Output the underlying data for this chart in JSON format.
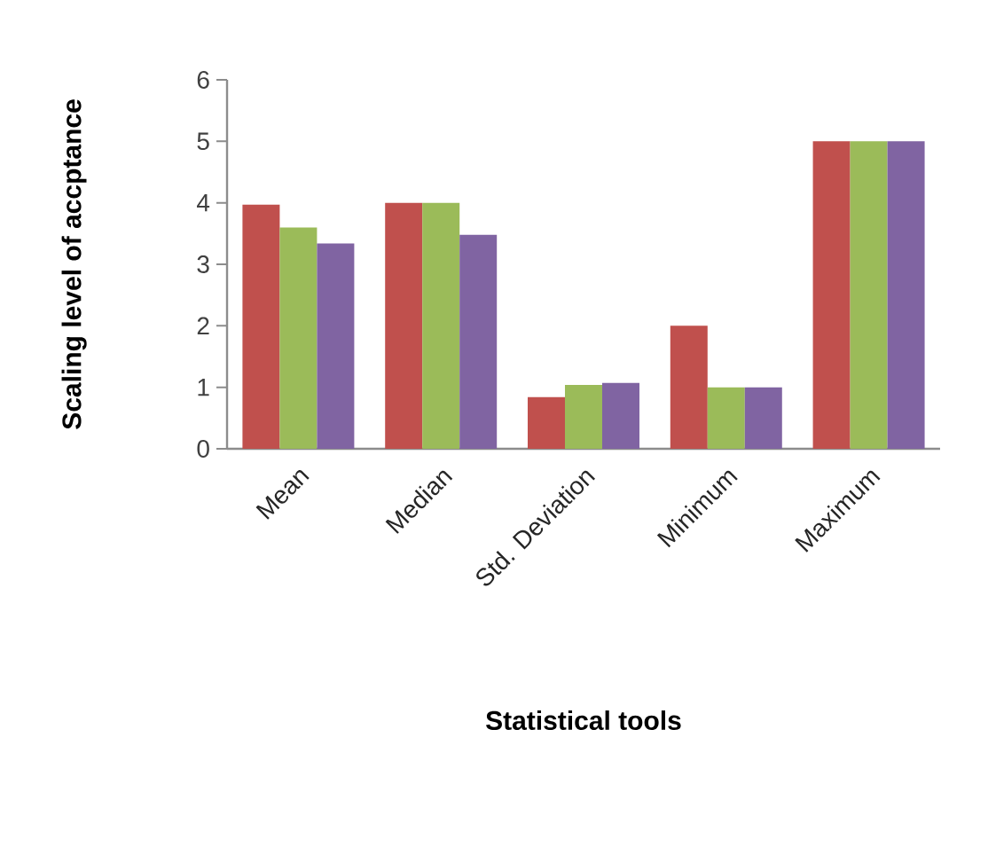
{
  "chart_data": {
    "type": "bar",
    "xlabel": "Statistical tools",
    "ylabel": "Scaling level of accptance",
    "categories": [
      "Mean",
      "Median",
      "Std. Deviation",
      "Minimum",
      "Maximum"
    ],
    "series": [
      {
        "color": "#c0504d",
        "values": [
          3.97,
          4.0,
          0.84,
          2.0,
          5.0
        ]
      },
      {
        "color": "#9bbb59",
        "values": [
          3.6,
          4.0,
          1.04,
          1.0,
          5.0
        ]
      },
      {
        "color": "#8064a2",
        "values": [
          3.34,
          3.48,
          1.07,
          1.0,
          5.0
        ]
      }
    ],
    "ylim": [
      0,
      6
    ],
    "yticks": [
      0,
      1,
      2,
      3,
      4,
      5,
      6
    ],
    "grid": false
  }
}
